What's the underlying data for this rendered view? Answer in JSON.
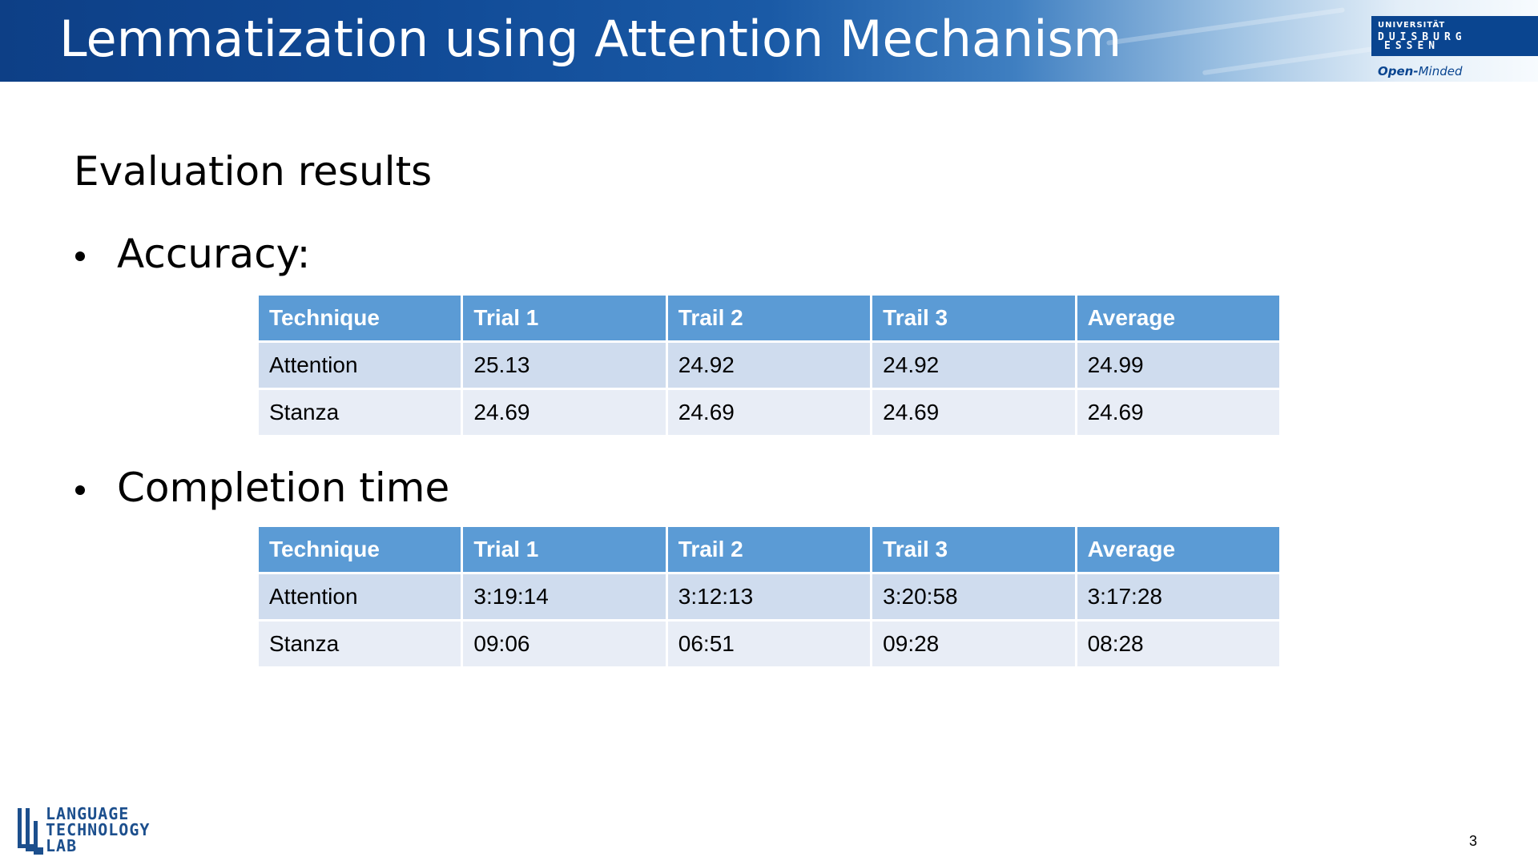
{
  "slide": {
    "title": "Lemmatization using Attention Mechanism",
    "subtitle": "Evaluation results",
    "page_number": "3"
  },
  "university_logo": {
    "line1": "UNIVERSITÄT",
    "line2": "DUISBURG",
    "line3": "ESSEN",
    "slogan_part1": "Open-",
    "slogan_part2": "Minded",
    "color": "#0a4590"
  },
  "lab_logo": {
    "line1": "LANGUAGE",
    "line2": "TECHNOLOGY",
    "line3": "LAB",
    "color": "#1c4f8d"
  },
  "accuracy": {
    "bullet": "Accuracy:",
    "headers": [
      "Technique",
      "Trial 1",
      "Trail 2",
      "Trail 3",
      "Average"
    ],
    "rows": [
      [
        "Attention",
        "25.13",
        "24.92",
        "24.92",
        "24.99"
      ],
      [
        "Stanza",
        "24.69",
        "24.69",
        "24.69",
        "24.69"
      ]
    ]
  },
  "completion_time": {
    "bullet": "Completion time",
    "headers": [
      "Technique",
      "Trial 1",
      "Trail 2",
      "Trail 3",
      "Average"
    ],
    "rows": [
      [
        "Attention",
        "3:19:14",
        "3:12:13",
        "3:20:58",
        "3:17:28"
      ],
      [
        "Stanza",
        "09:06",
        "06:51",
        "09:28",
        "08:28"
      ]
    ]
  },
  "colors": {
    "header_blue": "#0d3f86",
    "table_header": "#5b9bd5",
    "row_odd": "#cfdcee",
    "row_even": "#e8edf6"
  }
}
